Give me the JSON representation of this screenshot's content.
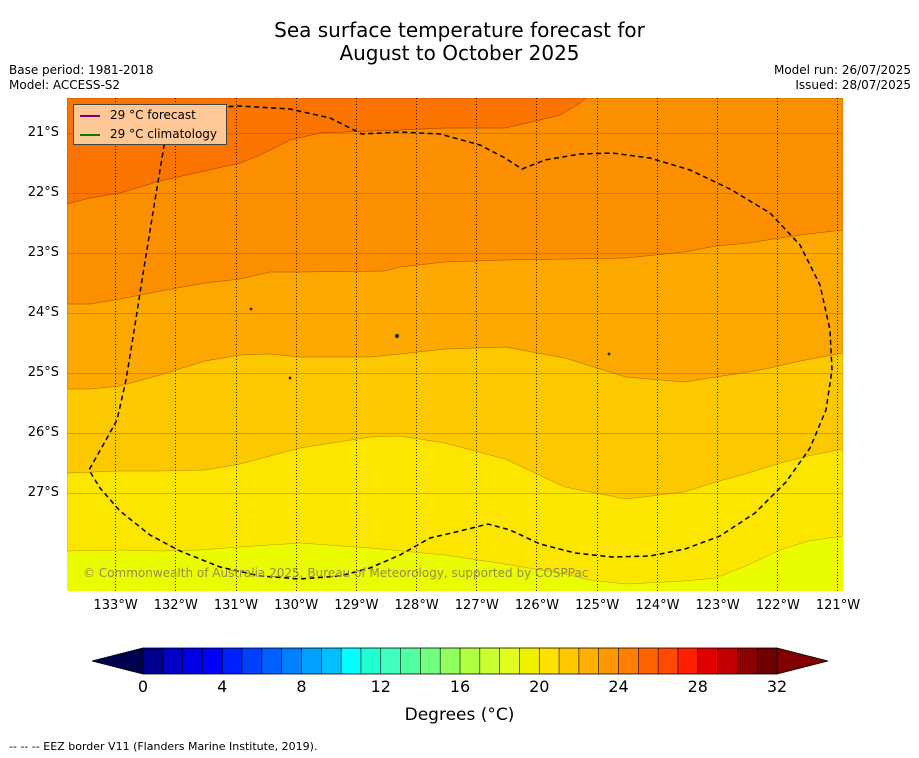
{
  "title_line1": "Sea surface temperature forecast for",
  "title_line2": "August to October 2025",
  "base_period": "Base period: 1981-2018",
  "model": "Model: ACCESS-S2",
  "model_run": "Model run: 26/07/2025",
  "issued": "Issued: 28/07/2025",
  "legend": {
    "forecast_label": "29 °C  forecast",
    "forecast_color": "#800080",
    "climatology_label": "29 °C  climatology",
    "climatology_color": "#008000"
  },
  "copyright": "© Commonwealth of Australia 2025, Bureau of Meteorology, supported by COSPPac",
  "lat_labels": [
    "21°S",
    "22°S",
    "23°S",
    "24°S",
    "25°S",
    "26°S",
    "27°S"
  ],
  "lon_labels": [
    "133°W",
    "132°W",
    "131°W",
    "130°W",
    "129°W",
    "128°W",
    "127°W",
    "126°W",
    "125°W",
    "124°W",
    "123°W",
    "122°W",
    "121°W"
  ],
  "colorbar": {
    "title": "Degrees (°C)",
    "ticks": [
      "0",
      "4",
      "8",
      "12",
      "16",
      "20",
      "24",
      "28",
      "32"
    ],
    "colors": [
      "#00008f",
      "#0000c8",
      "#0000e8",
      "#0000ff",
      "#0020ff",
      "#0040ff",
      "#0060ff",
      "#0080ff",
      "#00a0ff",
      "#00c0ff",
      "#00ffff",
      "#20ffd0",
      "#40ffc0",
      "#50ffa0",
      "#70ff80",
      "#90ff60",
      "#b0ff40",
      "#c8ff30",
      "#e0ff20",
      "#f0f000",
      "#ffe000",
      "#ffc800",
      "#ffb000",
      "#ff9800",
      "#ff8000",
      "#ff6400",
      "#ff4800",
      "#ff2000",
      "#e00000",
      "#c00000",
      "#8b0000",
      "#700000"
    ]
  },
  "footnote": "--  --  -- EEZ border V11 (Flanders Marine Institute, 2019).",
  "chart_data": {
    "type": "heatmap",
    "region": {
      "lon_range": [
        -133.8,
        -120.9
      ],
      "lat_range": [
        -28.6,
        -20.4
      ]
    },
    "unit": "°C",
    "colormap_range": [
      0,
      32
    ],
    "temperature_bands": [
      {
        "range": "19.5-20.5",
        "color": "#ecfc00"
      },
      {
        "range": "20.5-21.5",
        "color": "#fce600"
      },
      {
        "range": "21.5-22.5",
        "color": "#fcc800"
      },
      {
        "range": "22.5-23.5",
        "color": "#fca800"
      },
      {
        "range": "23.5-24.5",
        "color": "#fc8f00"
      },
      {
        "range": "24.5-25.5",
        "color": "#fc7400"
      }
    ],
    "band_boundaries_lat_at_lon": {
      "lon": [
        -133.8,
        -132.0,
        -130.0,
        -128.0,
        -126.0,
        -124.0,
        -122.0,
        -120.9
      ],
      "20.5": [
        -27.95,
        -27.95,
        -27.8,
        -27.7,
        -27.9,
        -28.25,
        -28.1,
        -27.7
      ],
      "21.5": [
        -26.6,
        -26.6,
        -26.3,
        -26.1,
        -26.4,
        -27.0,
        -26.7,
        -26.25
      ],
      "22.5": [
        -25.25,
        -25.0,
        -24.7,
        -24.75,
        -24.55,
        -25.05,
        -24.9,
        -24.65
      ],
      "23.5": [
        -23.8,
        -23.5,
        -23.3,
        -23.3,
        -23.15,
        -23.1,
        -22.9,
        -22.65
      ],
      "24.5": [
        -22.15,
        -21.8,
        -21.5,
        -21.1,
        -21.0,
        -20.9,
        -20.8,
        -20.7
      ]
    },
    "lat_ticks": [
      "21°S",
      "22°S",
      "23°S",
      "24°S",
      "25°S",
      "26°S",
      "27°S"
    ],
    "lon_ticks": [
      "133°W",
      "132°W",
      "131°W",
      "130°W",
      "129°W",
      "128°W",
      "127°W",
      "126°W",
      "125°W",
      "124°W",
      "123°W",
      "122°W",
      "121°W"
    ],
    "grid": true,
    "eez_border": "dashed black"
  }
}
